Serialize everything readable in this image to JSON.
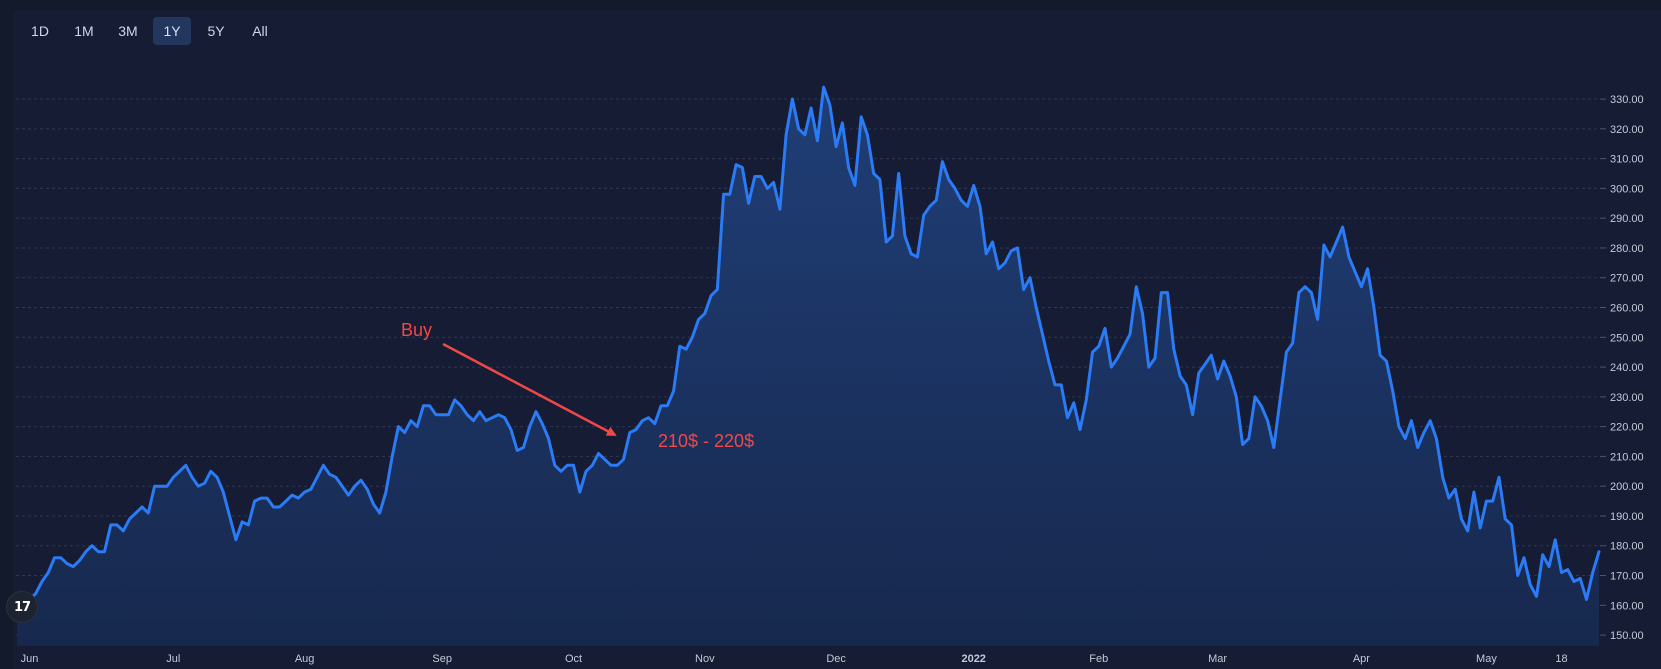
{
  "toolbar": {
    "ranges": [
      "1D",
      "1M",
      "3M",
      "1Y",
      "5Y",
      "All"
    ],
    "active_range": "1Y"
  },
  "logo": {
    "text": "17",
    "icon": "tradingview-logo-icon"
  },
  "colors": {
    "background": "#131a2c",
    "line": "#2a7bf5",
    "fill_top": "#20407a",
    "fill_bottom": "#17294f",
    "grid": "#3a4560",
    "annotation": "#f04848",
    "axis_text": "#c4cad9"
  },
  "chart_data": {
    "type": "area",
    "title": "",
    "xlabel": "",
    "ylabel": "",
    "ylim": [
      146,
      335
    ],
    "yticks": [
      150,
      160,
      170,
      180,
      190,
      200,
      210,
      220,
      230,
      240,
      250,
      260,
      270,
      280,
      290,
      300,
      310,
      320,
      330
    ],
    "ytick_labels": [
      "150.00",
      "160.00",
      "170.00",
      "180.00",
      "190.00",
      "200.00",
      "210.00",
      "220.00",
      "230.00",
      "240.00",
      "250.00",
      "260.00",
      "270.00",
      "280.00",
      "290.00",
      "300.00",
      "310.00",
      "320.00",
      "330.00"
    ],
    "xticks": [
      {
        "label": "Jun",
        "index": 2,
        "bold": false
      },
      {
        "label": "Jul",
        "index": 25,
        "bold": false
      },
      {
        "label": "Aug",
        "index": 46,
        "bold": false
      },
      {
        "label": "Sep",
        "index": 68,
        "bold": false
      },
      {
        "label": "Oct",
        "index": 89,
        "bold": false
      },
      {
        "label": "Nov",
        "index": 110,
        "bold": false
      },
      {
        "label": "Dec",
        "index": 131,
        "bold": false
      },
      {
        "label": "2022",
        "index": 153,
        "bold": true
      },
      {
        "label": "Feb",
        "index": 173,
        "bold": false
      },
      {
        "label": "Mar",
        "index": 192,
        "bold": false
      },
      {
        "label": "Apr",
        "index": 215,
        "bold": false
      },
      {
        "label": "May",
        "index": 235,
        "bold": false
      },
      {
        "label": "18",
        "index": 247,
        "bold": false
      }
    ],
    "grid": true,
    "series": [
      {
        "values": [
          157,
          155,
          162,
          164,
          168,
          171,
          176,
          176,
          174,
          173,
          175,
          178,
          180,
          178,
          178,
          187,
          187,
          185,
          189,
          191,
          193,
          191,
          200,
          200,
          200,
          203,
          205,
          207,
          203,
          200,
          201,
          205,
          203,
          198,
          190,
          182,
          188,
          187,
          195,
          196,
          196,
          193,
          193,
          195,
          197,
          196,
          198,
          199,
          203,
          207,
          204,
          203,
          200,
          197,
          200,
          202,
          199,
          194,
          191,
          198,
          210,
          220,
          218,
          222,
          220,
          227,
          227,
          224,
          224,
          224,
          229,
          227,
          224,
          222,
          225,
          222,
          223,
          224,
          223,
          219,
          212,
          213,
          220,
          225,
          221,
          216,
          207,
          205,
          207,
          207,
          198,
          205,
          207,
          211,
          209,
          207,
          207,
          209,
          218,
          219,
          222,
          223,
          221,
          227,
          227,
          232,
          247,
          246,
          250,
          256,
          258,
          264,
          266,
          298,
          298,
          308,
          307,
          295,
          304,
          304,
          300,
          302,
          293,
          318,
          330,
          320,
          318,
          327,
          316,
          334,
          328,
          314,
          322,
          307,
          301,
          324,
          318,
          305,
          303,
          282,
          284,
          305,
          284,
          278,
          277,
          291,
          294,
          296,
          309,
          303,
          300,
          296,
          294,
          301,
          294,
          278,
          282,
          273,
          275,
          279,
          280,
          266,
          270,
          260,
          251,
          242,
          234,
          234,
          223,
          228,
          219,
          229,
          245,
          247,
          253,
          240,
          243,
          247,
          251,
          267,
          258,
          240,
          243,
          265,
          265,
          246,
          237,
          234,
          224,
          238,
          241,
          244,
          236,
          242,
          237,
          230,
          214,
          216,
          230,
          227,
          222,
          213,
          229,
          245,
          248,
          265,
          267,
          265,
          256,
          281,
          277,
          282,
          287,
          277,
          272,
          267,
          273,
          260,
          244,
          242,
          232,
          220,
          216,
          222,
          213,
          218,
          222,
          216,
          203,
          196,
          199,
          189,
          185,
          198,
          186,
          195,
          195,
          203,
          189,
          187,
          170,
          176,
          167,
          163,
          177,
          173,
          182,
          171,
          172,
          168,
          169,
          162,
          171,
          178
        ]
      }
    ],
    "annotations": [
      {
        "text": "Buy"
      },
      {
        "text": "210$ - 220$"
      }
    ]
  }
}
